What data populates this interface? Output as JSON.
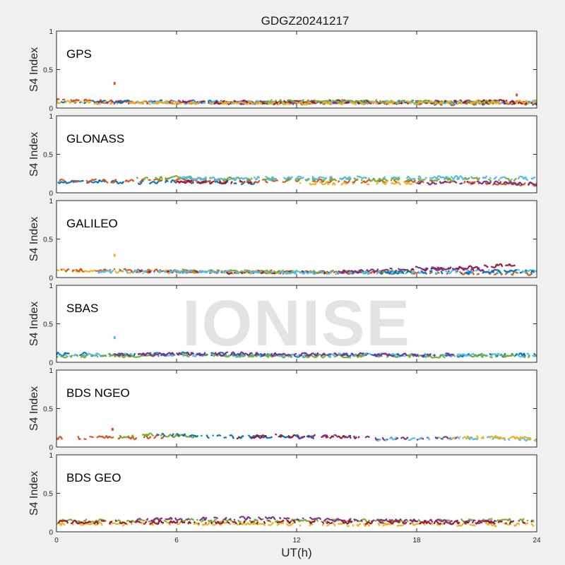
{
  "chart_data": {
    "type": "scatter",
    "title": "GDGZ20241217",
    "xlabel": "UT(h)",
    "ylabel": "S4 Index",
    "xlim": [
      0,
      24
    ],
    "ylim": [
      0,
      1
    ],
    "xticks": [
      "0",
      "6",
      "12",
      "18",
      "24"
    ],
    "yticks": [
      "0",
      "0.5",
      "1"
    ],
    "grid": false,
    "watermark": "IONISE",
    "colors": [
      "#0072BD",
      "#D95319",
      "#EDB120",
      "#7E2F8E",
      "#77AC30",
      "#4DBEEE",
      "#A2142F"
    ],
    "panels": [
      {
        "name": "GPS",
        "series": [
          {
            "color": "#D95319",
            "x": [
              0,
              2,
              4,
              6,
              8,
              10,
              12,
              14,
              16,
              18,
              20,
              22,
              24
            ],
            "y": [
              0.1,
              0.09,
              0.08,
              0.07,
              0.07,
              0.06,
              0.06,
              0.07,
              0.07,
              0.06,
              0.06,
              0.06,
              0.05
            ]
          },
          {
            "color": "#0072BD",
            "x": [
              0,
              3,
              6,
              9,
              12,
              15,
              18,
              21,
              24
            ],
            "y": [
              0.07,
              0.08,
              0.09,
              0.08,
              0.07,
              0.08,
              0.08,
              0.07,
              0.07
            ]
          },
          {
            "color": "#7E2F8E",
            "x": [
              2,
              5,
              8,
              11,
              14,
              17,
              20,
              23
            ],
            "y": [
              0.07,
              0.08,
              0.07,
              0.07,
              0.08,
              0.07,
              0.08,
              0.07
            ]
          },
          {
            "color": "#4DBEEE",
            "x": [
              4,
              8,
              12,
              16,
              20,
              24
            ],
            "y": [
              0.08,
              0.07,
              0.08,
              0.08,
              0.07,
              0.08
            ]
          },
          {
            "color": "#A2142F",
            "x": [
              6,
              10,
              14,
              18,
              22,
              24
            ],
            "y": [
              0.07,
              0.08,
              0.08,
              0.07,
              0.09,
              0.07
            ]
          },
          {
            "color": "#77AC30",
            "x": [
              10,
              13,
              16,
              19,
              22
            ],
            "y": [
              0.08,
              0.09,
              0.09,
              0.08,
              0.08
            ]
          },
          {
            "color": "#EDB120",
            "x": [
              0,
              4,
              8,
              12,
              16,
              20,
              24
            ],
            "y": [
              0.08,
              0.07,
              0.07,
              0.06,
              0.07,
              0.07,
              0.08
            ]
          }
        ],
        "outliers": [
          {
            "x": 2.9,
            "y": 0.32,
            "color": "#D95319"
          },
          {
            "x": 23.0,
            "y": 0.17,
            "color": "#D95319"
          }
        ]
      },
      {
        "name": "GLONASS",
        "series": [
          {
            "color": "#0072BD",
            "x": [
              0,
              2,
              4,
              6,
              8,
              10
            ],
            "y": [
              0.14,
              0.15,
              0.13,
              0.15,
              0.14,
              0.13
            ]
          },
          {
            "color": "#D95319",
            "x": [
              0,
              3,
              6,
              9,
              12,
              15,
              18,
              21,
              24
            ],
            "y": [
              0.16,
              0.15,
              0.17,
              0.15,
              0.16,
              0.15,
              0.15,
              0.13,
              0.11
            ]
          },
          {
            "color": "#77AC30",
            "x": [
              4,
              6,
              8,
              19,
              21,
              23
            ],
            "y": [
              0.18,
              0.2,
              0.18,
              0.17,
              0.18,
              0.17
            ]
          },
          {
            "color": "#4DBEEE",
            "x": [
              6,
              8,
              10,
              21,
              23,
              24
            ],
            "y": [
              0.2,
              0.18,
              0.19,
              0.2,
              0.19,
              0.18
            ]
          },
          {
            "color": "#A2142F",
            "x": [
              6,
              8,
              10
            ],
            "y": [
              0.15,
              0.13,
              0.14
            ]
          },
          {
            "color": "#EDB120",
            "x": [
              12,
              14,
              16,
              18
            ],
            "y": [
              0.13,
              0.12,
              0.13,
              0.12
            ]
          },
          {
            "color": "#7E2F8E",
            "x": [
              18,
              20,
              22,
              24
            ],
            "y": [
              0.12,
              0.14,
              0.13,
              0.11
            ]
          }
        ],
        "outliers": []
      },
      {
        "name": "GALILEO",
        "series": [
          {
            "color": "#EDB120",
            "x": [
              0,
              2,
              4,
              6,
              8,
              10,
              12
            ],
            "y": [
              0.09,
              0.08,
              0.07,
              0.08,
              0.07,
              0.07,
              0.06
            ]
          },
          {
            "color": "#D95319",
            "x": [
              0,
              4,
              8,
              12,
              16,
              20,
              24
            ],
            "y": [
              0.1,
              0.09,
              0.08,
              0.07,
              0.06,
              0.06,
              0.05
            ]
          },
          {
            "color": "#A2142F",
            "x": [
              4,
              8,
              12,
              16,
              20,
              23
            ],
            "y": [
              0.08,
              0.07,
              0.07,
              0.08,
              0.12,
              0.17
            ]
          },
          {
            "color": "#77AC30",
            "x": [
              6,
              10,
              14,
              18
            ],
            "y": [
              0.09,
              0.08,
              0.07,
              0.08
            ]
          },
          {
            "color": "#4DBEEE",
            "x": [
              2,
              6,
              10,
              14,
              18,
              22,
              24
            ],
            "y": [
              0.07,
              0.08,
              0.07,
              0.06,
              0.07,
              0.08,
              0.09
            ]
          },
          {
            "color": "#7E2F8E",
            "x": [
              14,
              16,
              18,
              20,
              22
            ],
            "y": [
              0.07,
              0.09,
              0.12,
              0.11,
              0.09
            ]
          },
          {
            "color": "#0072BD",
            "x": [
              16,
              20,
              24
            ],
            "y": [
              0.06,
              0.07,
              0.08
            ]
          }
        ],
        "outliers": [
          {
            "x": 2.9,
            "y": 0.29,
            "color": "#EDB120"
          }
        ]
      },
      {
        "name": "SBAS",
        "series": [
          {
            "color": "#0072BD",
            "x": [
              0,
              3,
              6,
              9,
              12,
              15,
              18,
              21,
              24
            ],
            "y": [
              0.11,
              0.1,
              0.11,
              0.1,
              0.09,
              0.1,
              0.09,
              0.09,
              0.1
            ]
          },
          {
            "color": "#4DBEEE",
            "x": [
              0,
              4,
              8,
              12,
              16,
              20,
              24
            ],
            "y": [
              0.09,
              0.1,
              0.09,
              0.09,
              0.1,
              0.09,
              0.09
            ]
          },
          {
            "color": "#77AC30",
            "x": [
              0,
              6,
              12,
              18,
              24
            ],
            "y": [
              0.08,
              0.09,
              0.08,
              0.08,
              0.08
            ]
          },
          {
            "color": "#7E2F8E",
            "x": [
              2,
              8,
              14,
              20
            ],
            "y": [
              0.1,
              0.11,
              0.1,
              0.1
            ]
          }
        ],
        "outliers": [
          {
            "x": 2.9,
            "y": 0.32,
            "color": "#4DBEEE"
          }
        ]
      },
      {
        "name": "BDS NGEO",
        "series": [
          {
            "color": "#D95319",
            "x": [
              0,
              2,
              4,
              6
            ],
            "y": [
              0.11,
              0.13,
              0.12,
              0.14
            ]
          },
          {
            "color": "#77AC30",
            "x": [
              3,
              5,
              7
            ],
            "y": [
              0.13,
              0.16,
              0.14
            ]
          },
          {
            "color": "#0072BD",
            "x": [
              5,
              7,
              9,
              11,
              13
            ],
            "y": [
              0.16,
              0.15,
              0.13,
              0.14,
              0.13
            ]
          },
          {
            "color": "#A2142F",
            "x": [
              9,
              11,
              13,
              15
            ],
            "y": [
              0.12,
              0.15,
              0.14,
              0.13
            ]
          },
          {
            "color": "#7E2F8E",
            "x": [
              12,
              14,
              16,
              18,
              20
            ],
            "y": [
              0.12,
              0.14,
              0.11,
              0.11,
              0.12
            ]
          },
          {
            "color": "#4DBEEE",
            "x": [
              16,
              18,
              20,
              22,
              24
            ],
            "y": [
              0.1,
              0.11,
              0.12,
              0.11,
              0.1
            ]
          },
          {
            "color": "#EDB120",
            "x": [
              19,
              21,
              23,
              24
            ],
            "y": [
              0.11,
              0.13,
              0.12,
              0.09
            ]
          }
        ],
        "outliers": [
          {
            "x": 2.8,
            "y": 0.23,
            "color": "#D95319"
          }
        ]
      },
      {
        "name": "BDS GEO",
        "series": [
          {
            "color": "#EDB120",
            "x": [
              0,
              3,
              6,
              9,
              12,
              15,
              18,
              21,
              24
            ],
            "y": [
              0.1,
              0.1,
              0.11,
              0.1,
              0.1,
              0.09,
              0.1,
              0.09,
              0.09
            ]
          },
          {
            "color": "#77AC30",
            "x": [
              0,
              3,
              6,
              18,
              21,
              24
            ],
            "y": [
              0.15,
              0.14,
              0.15,
              0.14,
              0.15,
              0.15
            ]
          },
          {
            "color": "#7E2F8E",
            "x": [
              4,
              7,
              10,
              13,
              16,
              19,
              22
            ],
            "y": [
              0.15,
              0.17,
              0.18,
              0.16,
              0.15,
              0.14,
              0.13
            ]
          },
          {
            "color": "#A2142F",
            "x": [
              0,
              4,
              8,
              12,
              16,
              20,
              24
            ],
            "y": [
              0.13,
              0.12,
              0.12,
              0.13,
              0.12,
              0.12,
              0.12
            ]
          }
        ],
        "outliers": []
      }
    ]
  }
}
